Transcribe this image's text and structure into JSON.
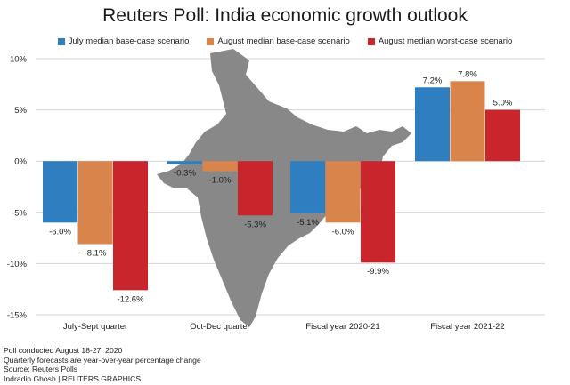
{
  "chart_data": {
    "type": "bar",
    "title": "Reuters Poll: India economic growth outlook",
    "categories": [
      "July-Sept quarter",
      "Oct-Dec quarter",
      "Fiscal year 2020-21",
      "Fiscal year 2021-22"
    ],
    "series": [
      {
        "name": "July median base-case scenario",
        "color": "#2f7fc0",
        "values": [
          -6.0,
          -0.3,
          -5.1,
          7.2
        ],
        "labels": [
          "-6.0%",
          "-0.3%",
          "-5.1%",
          "7.2%"
        ]
      },
      {
        "name": "August median base-case scenario",
        "color": "#d9844a",
        "values": [
          -8.1,
          -1.0,
          -6.0,
          7.8
        ],
        "labels": [
          "-8.1%",
          "-1.0%",
          "-6.0%",
          "7.8%"
        ]
      },
      {
        "name": "August median worst-case scenario",
        "color": "#c8262c",
        "values": [
          -12.6,
          -5.3,
          -9.9,
          5.0
        ],
        "labels": [
          "-12.6%",
          "-5.3%",
          "-9.9%",
          "5.0%"
        ]
      }
    ],
    "ylim": [
      -15,
      10
    ],
    "yticks": [
      10,
      5,
      0,
      -5,
      -10,
      -15
    ],
    "ytick_labels": [
      "10%",
      "5%",
      "0%",
      "-5%",
      "-10%",
      "-15%"
    ],
    "grid": true,
    "legend": "top-center",
    "background_image": "india-map"
  },
  "notes": [
    "Poll conducted August 18-27, 2020",
    "Quarterly forecasts are year-over-year percentage change",
    "Source: Reuters Polls",
    "Indradip Ghosh | REUTERS GRAPHICS"
  ],
  "map_color": "#888888"
}
